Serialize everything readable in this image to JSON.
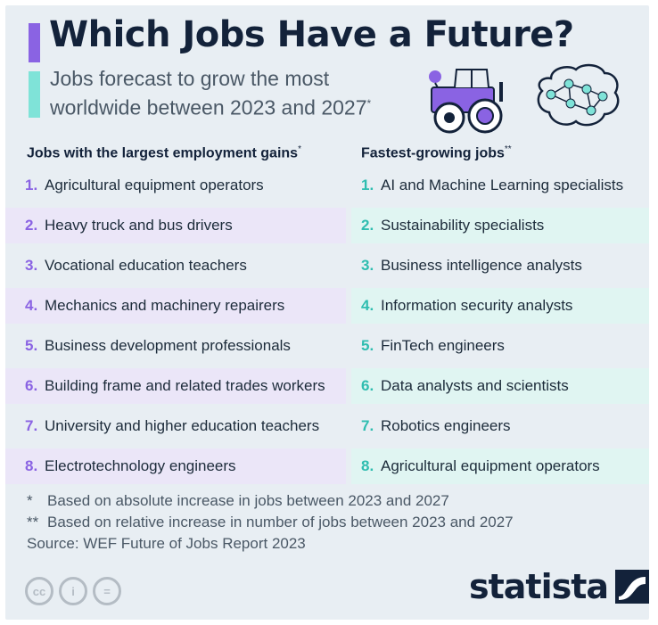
{
  "title": "Which Jobs Have a Future?",
  "subtitle": "Jobs forecast to grow the most worldwide between 2023 and 2027",
  "subtitle_mark": "*",
  "columns": {
    "left": {
      "heading": "Jobs with the largest employment gains",
      "mark": "*",
      "items": [
        {
          "num": "1.",
          "label": "Agricultural equipment operators"
        },
        {
          "num": "2.",
          "label": "Heavy truck and bus drivers"
        },
        {
          "num": "3.",
          "label": "Vocational education teachers"
        },
        {
          "num": "4.",
          "label": "Mechanics and machinery repairers"
        },
        {
          "num": "5.",
          "label": "Business development professionals"
        },
        {
          "num": "6.",
          "label": "Building frame and related trades workers"
        },
        {
          "num": "7.",
          "label": "University and higher education teachers"
        },
        {
          "num": "8.",
          "label": "Electrotechnology engineers"
        }
      ]
    },
    "right": {
      "heading": "Fastest-growing jobs",
      "mark": "**",
      "items": [
        {
          "num": "1.",
          "label": "AI and Machine Learning specialists"
        },
        {
          "num": "2.",
          "label": "Sustainability specialists"
        },
        {
          "num": "3.",
          "label": "Business intelligence analysts"
        },
        {
          "num": "4.",
          "label": "Information security analysts"
        },
        {
          "num": "5.",
          "label": "FinTech engineers"
        },
        {
          "num": "6.",
          "label": "Data analysts and scientists"
        },
        {
          "num": "7.",
          "label": "Robotics engineers"
        },
        {
          "num": "8.",
          "label": "Agricultural equipment operators"
        }
      ]
    }
  },
  "notes": [
    {
      "mark": "*",
      "text": "Based on absolute increase in jobs between 2023 and 2027"
    },
    {
      "mark": "**",
      "text": "Based on relative increase in number of jobs between 2023 and 2027"
    }
  ],
  "source": "Source: WEF Future of Jobs Report 2023",
  "license_icons": [
    "creative-commons-icon",
    "attribution-icon",
    "no-derivatives-icon"
  ],
  "license_glyphs": [
    "cc",
    "i",
    "="
  ],
  "brand": "statista",
  "colors": {
    "accent_purple": "#8a63e3",
    "accent_teal": "#7fe3d8",
    "row_purple": "#ebe6f8",
    "row_teal": "#e0f5f2",
    "background": "#e8eef3",
    "text_dark": "#13223a"
  }
}
